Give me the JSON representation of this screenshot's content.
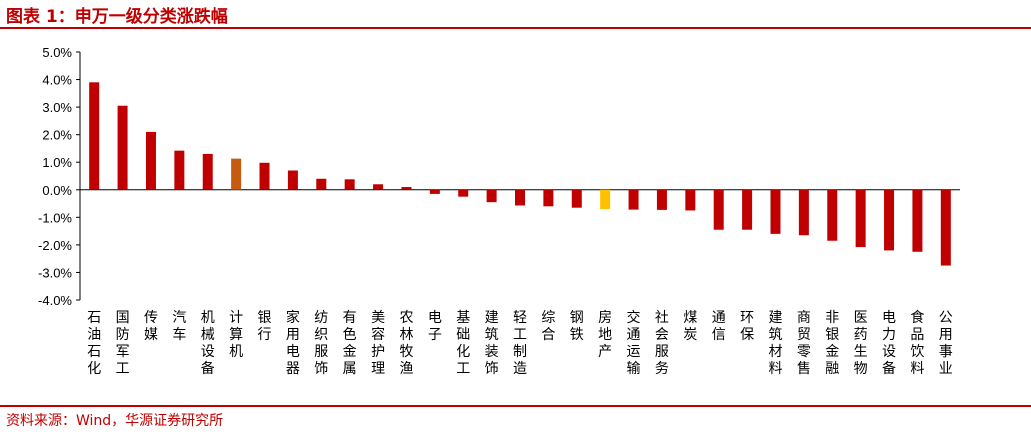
{
  "header": {
    "title": "图表 1：申万一级分类涨跌幅"
  },
  "footer": {
    "source": "资料来源：Wind，华源证券研究所"
  },
  "chart_data": {
    "type": "bar",
    "title": "",
    "xlabel": "",
    "ylabel": "",
    "ylim": [
      -4.0,
      5.0
    ],
    "yticks": [
      "5.0%",
      "4.0%",
      "3.0%",
      "2.0%",
      "1.0%",
      "0.0%",
      "-1.0%",
      "-2.0%",
      "-3.0%",
      "-4.0%"
    ],
    "grid": false,
    "categories": [
      "石油石化",
      "国防军工",
      "传媒",
      "汽车",
      "机械设备",
      "计算机",
      "银行",
      "家用电器",
      "纺织服饰",
      "有色金属",
      "美容护理",
      "农林牧渔",
      "电子",
      "基础化工",
      "建筑装饰",
      "轻工制造",
      "综合",
      "钢铁",
      "房地产",
      "交通运输",
      "社会服务",
      "煤炭",
      "通信",
      "环保",
      "建筑材料",
      "商贸零售",
      "非银金融",
      "医药生物",
      "电力设备",
      "食品饮料",
      "公用事业"
    ],
    "values": [
      3.9,
      3.05,
      2.1,
      1.42,
      1.3,
      1.13,
      0.98,
      0.7,
      0.4,
      0.38,
      0.2,
      0.1,
      -0.15,
      -0.25,
      -0.45,
      -0.57,
      -0.6,
      -0.65,
      -0.7,
      -0.72,
      -0.73,
      -0.75,
      -1.45,
      -1.45,
      -1.6,
      -1.65,
      -1.85,
      -2.08,
      -2.2,
      -2.25,
      -2.75
    ],
    "colors": {
      "default": "#c00000",
      "highlight_orange": "#c55a11",
      "highlight_yellow": "#ffc000"
    },
    "highlight": {
      "计算机": "#c55a11",
      "房地产": "#ffc000"
    }
  }
}
